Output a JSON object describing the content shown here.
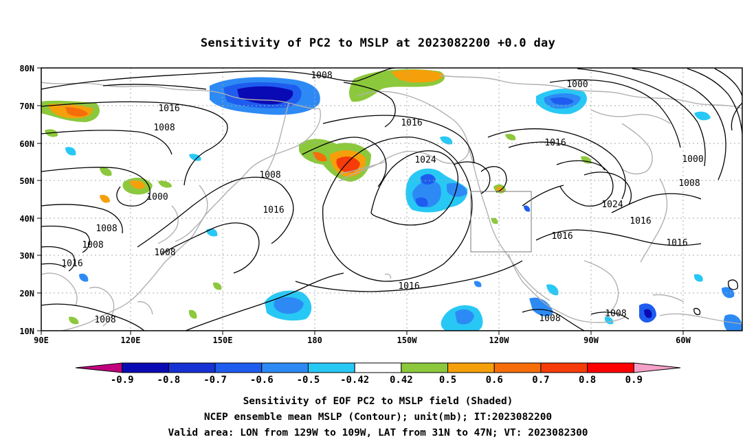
{
  "title": "Sensitivity of PC2 to MSLP at 2023082200 +0.0 day",
  "axes": {
    "lat_labels": [
      "80N",
      "70N",
      "60N",
      "50N",
      "40N",
      "30N",
      "20N",
      "10N"
    ],
    "lon_labels": [
      "90E",
      "120E",
      "150E",
      "180",
      "150W",
      "120W",
      "90W",
      "60W"
    ]
  },
  "colorbar": {
    "labels": [
      "-0.9",
      "-0.8",
      "-0.7",
      "-0.6",
      "-0.5",
      "-0.42",
      "0.42",
      "0.5",
      "0.6",
      "0.7",
      "0.8",
      "0.9"
    ],
    "colors": [
      "#c0007c",
      "#0a0ab4",
      "#1632d2",
      "#1e5cf0",
      "#2d8af5",
      "#28c8f5",
      "#ffffff",
      "#8cc83c",
      "#f5a00a",
      "#f56e0a",
      "#f53c0a",
      "#ff0000",
      "#f5a0c8"
    ]
  },
  "contour_labels": [
    {
      "text": "1008"
    },
    {
      "text": "1016"
    },
    {
      "text": "1008"
    },
    {
      "text": "1000"
    },
    {
      "text": "1008"
    },
    {
      "text": "1008"
    },
    {
      "text": "1016"
    },
    {
      "text": "1008"
    },
    {
      "text": "1008"
    },
    {
      "text": "1016"
    },
    {
      "text": "1024"
    },
    {
      "text": "1016"
    },
    {
      "text": "1016"
    },
    {
      "text": "1000"
    },
    {
      "text": "1016"
    },
    {
      "text": "1000"
    },
    {
      "text": "1008"
    },
    {
      "text": "1024"
    },
    {
      "text": "1016"
    },
    {
      "text": "1016"
    },
    {
      "text": "1016"
    },
    {
      "text": "1008"
    },
    {
      "text": "1008"
    },
    {
      "text": "1008"
    },
    {
      "text": "1016"
    }
  ],
  "caption": {
    "line1": "Sensitivity of EOF PC2 to MSLP field (Shaded)",
    "line2": "NCEP ensemble mean MSLP (Contour); unit(mb); IT:2023082200",
    "line3": "Valid area: LON from 129W to 109W, LAT from 31N to 47N; VT: 2023082300"
  },
  "valid_area": {
    "lon_min": -129,
    "lon_max": -109,
    "lat_min": 31,
    "lat_max": 47
  }
}
